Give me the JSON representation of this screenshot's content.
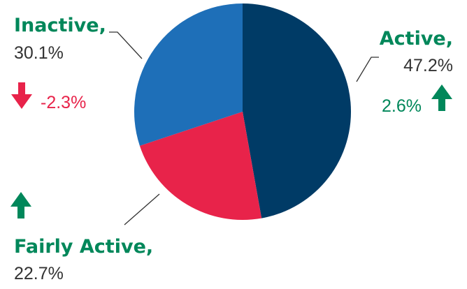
{
  "chart_data": {
    "type": "pie",
    "title": "",
    "slices": [
      {
        "key": "active",
        "label": "Active,",
        "value": 47.2,
        "value_label": "47.2%",
        "color": "#003B66",
        "change": {
          "text": "2.6%",
          "direction": "up",
          "color": "#00875A"
        }
      },
      {
        "key": "fairly-active",
        "label": "Fairly Active,",
        "value": 22.7,
        "value_label": "22.7%",
        "color": "#E8234A",
        "change": {
          "text": "",
          "direction": "up",
          "color": "#00875A"
        }
      },
      {
        "key": "inactive",
        "label": "Inactive,",
        "value": 30.1,
        "value_label": "30.1%",
        "color": "#1E6FB8",
        "change": {
          "text": "-2.3%",
          "direction": "down",
          "color": "#E8234A"
        }
      }
    ],
    "label_color": "#00875A",
    "start_direction": "12 o'clock",
    "order": "clockwise"
  },
  "icons": {
    "up": "arrow-up-icon",
    "down": "arrow-down-icon"
  }
}
